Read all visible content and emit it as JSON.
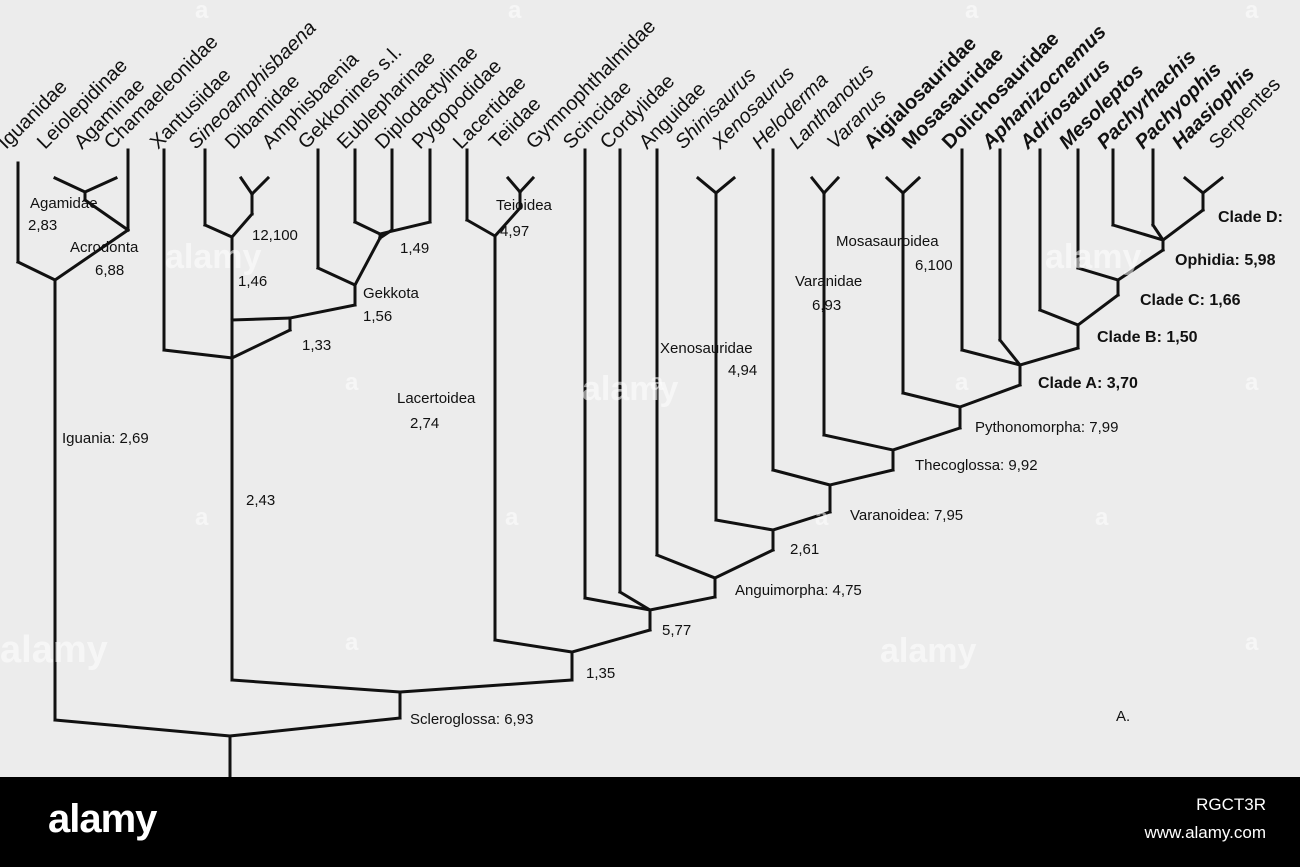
{
  "colors": {
    "background": "#ececec",
    "line": "#111111",
    "footer": "#000000",
    "footer_text": "#ffffff"
  },
  "taxa": [
    {
      "name": "Iguanidae",
      "italic": false,
      "bold": false
    },
    {
      "name": "Leiolepidinae",
      "italic": false,
      "bold": false
    },
    {
      "name": "Agaminae",
      "italic": false,
      "bold": false
    },
    {
      "name": "Chamaeleonidae",
      "italic": false,
      "bold": false
    },
    {
      "name": "Xantusiidae",
      "italic": false,
      "bold": false
    },
    {
      "name": "Sineoamphisbaena",
      "italic": true,
      "bold": false
    },
    {
      "name": "Dibamidae",
      "italic": false,
      "bold": false
    },
    {
      "name": "Amphisbaenia",
      "italic": false,
      "bold": false
    },
    {
      "name": "Gekkonines s.l.",
      "italic": false,
      "bold": false
    },
    {
      "name": "Eublepharinae",
      "italic": false,
      "bold": false
    },
    {
      "name": "Diplodactylinae",
      "italic": false,
      "bold": false
    },
    {
      "name": "Pygopodidae",
      "italic": false,
      "bold": false
    },
    {
      "name": "Lacertidae",
      "italic": false,
      "bold": false
    },
    {
      "name": "Teiidae",
      "italic": false,
      "bold": false
    },
    {
      "name": "Gymnophthalmidae",
      "italic": false,
      "bold": false
    },
    {
      "name": "Scincidae",
      "italic": false,
      "bold": false
    },
    {
      "name": "Cordylidae",
      "italic": false,
      "bold": false
    },
    {
      "name": "Anguidae",
      "italic": false,
      "bold": false
    },
    {
      "name": "Shinisaurus",
      "italic": true,
      "bold": false
    },
    {
      "name": "Xenosaurus",
      "italic": true,
      "bold": false
    },
    {
      "name": "Heloderma",
      "italic": true,
      "bold": false
    },
    {
      "name": "Lanthanotus",
      "italic": true,
      "bold": false
    },
    {
      "name": "Varanus",
      "italic": true,
      "bold": false
    },
    {
      "name": "Aigialosauridae",
      "italic": false,
      "bold": true
    },
    {
      "name": "Mosasauridae",
      "italic": false,
      "bold": true
    },
    {
      "name": "Dolichosauridae",
      "italic": false,
      "bold": true
    },
    {
      "name": "Aphanizocnemus",
      "italic": true,
      "bold": true
    },
    {
      "name": "Adriosaurus",
      "italic": true,
      "bold": true
    },
    {
      "name": "Mesoleptos",
      "italic": true,
      "bold": true
    },
    {
      "name": "Pachyrhachis",
      "italic": true,
      "bold": true
    },
    {
      "name": "Pachyophis",
      "italic": true,
      "bold": true
    },
    {
      "name": "Haasiophis",
      "italic": true,
      "bold": true
    },
    {
      "name": "Serpentes",
      "italic": false,
      "bold": false
    }
  ],
  "node_labels": [
    {
      "text": "Agamidae",
      "bold": false
    },
    {
      "text": "2,83",
      "bold": false
    },
    {
      "text": "Acrodonta",
      "bold": false
    },
    {
      "text": "6,88",
      "bold": false
    },
    {
      "text": "12,100",
      "bold": false
    },
    {
      "text": "1,46",
      "bold": false
    },
    {
      "text": "1,49",
      "bold": false
    },
    {
      "text": "Gekkota",
      "bold": false
    },
    {
      "text": "1,56",
      "bold": false
    },
    {
      "text": "1,33",
      "bold": false
    },
    {
      "text": "Teioidea",
      "bold": false
    },
    {
      "text": "4,97",
      "bold": false
    },
    {
      "text": "Iguania: 2,69",
      "bold": false
    },
    {
      "text": "2,43",
      "bold": false
    },
    {
      "text": "Lacertoidea",
      "bold": false
    },
    {
      "text": "2,74",
      "bold": false
    },
    {
      "text": "Xenosauridae",
      "bold": false
    },
    {
      "text": "4,94",
      "bold": false
    },
    {
      "text": "Varanidae",
      "bold": false
    },
    {
      "text": "6,93",
      "bold": false
    },
    {
      "text": "Mosasauroidea",
      "bold": false
    },
    {
      "text": "6,100",
      "bold": false
    },
    {
      "text": "Clade D:",
      "bold": true
    },
    {
      "text": "Ophidia: 5,98",
      "bold": true
    },
    {
      "text": "Clade C: 1,66",
      "bold": true
    },
    {
      "text": "Clade B: 1,50",
      "bold": true
    },
    {
      "text": "Clade A: 3,70",
      "bold": true
    },
    {
      "text": "Pythonomorpha: 7,99",
      "bold": false
    },
    {
      "text": "Thecoglossa: 9,92",
      "bold": false
    },
    {
      "text": "Varanoidea: 7,95",
      "bold": false
    },
    {
      "text": "2,61",
      "bold": false
    },
    {
      "text": "Anguimorpha: 4,75",
      "bold": false
    },
    {
      "text": "5,77",
      "bold": false
    },
    {
      "text": "1,35",
      "bold": false
    },
    {
      "text": "Scleroglossa: 6,93",
      "bold": false
    },
    {
      "text": "A.",
      "bold": false
    }
  ],
  "watermark": {
    "text": "alamy",
    "small": "a"
  },
  "footer": {
    "logo": "alamy",
    "image_id": "RGCT3R",
    "url": "www.alamy.com"
  }
}
